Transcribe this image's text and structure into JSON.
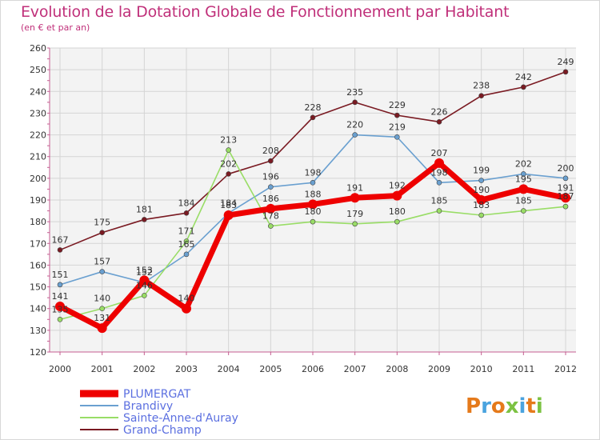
{
  "chart_data": {
    "type": "line",
    "title": "Evolution de la Dotation Globale de Fonctionnement par Habitant",
    "subtitle": "(en € et par an)",
    "xlabel": "",
    "ylabel": "",
    "categories": [
      "2000",
      "2001",
      "2002",
      "2003",
      "2004",
      "2005",
      "2006",
      "2007",
      "2008",
      "2009",
      "2010",
      "2011",
      "2012"
    ],
    "ylim": [
      120,
      260
    ],
    "ystep": 10,
    "grid": true,
    "legend_position": "bottom-left",
    "series": [
      {
        "name": "Grand-Champ",
        "color": "#7a1a22",
        "values": [
          167,
          175,
          181,
          184,
          202,
          208,
          228,
          235,
          229,
          226,
          238,
          242,
          249
        ]
      },
      {
        "name": "Brandivy",
        "color": "#6aa0d0",
        "values": [
          151,
          157,
          152,
          165,
          184,
          196,
          198,
          220,
          219,
          198,
          199,
          202,
          200
        ]
      },
      {
        "name": "Sainte-Anne-d'Auray",
        "color": "#99dd66",
        "values": [
          135,
          140,
          146,
          171,
          213,
          178,
          180,
          179,
          180,
          185,
          183,
          185,
          187
        ]
      },
      {
        "name": "PLUMERGAT",
        "color": "#ee0000",
        "values": [
          141,
          131,
          153,
          140,
          183,
          186,
          188,
          191,
          192,
          207,
          190,
          195,
          191
        ]
      }
    ],
    "legend": [
      "PLUMERGAT",
      "Brandivy",
      "Sainte-Anne-d'Auray",
      "Grand-Champ"
    ]
  },
  "brand": {
    "name": "Proxiti"
  }
}
